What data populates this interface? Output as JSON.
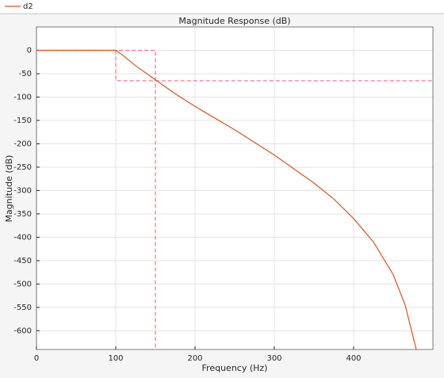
{
  "chart_data": {
    "type": "line",
    "title": "Magnitude Response (dB)",
    "x_label": "Frequency (Hz)",
    "y_label": "Magnitude (dB)",
    "x": [
      0,
      100,
      110,
      125,
      150,
      175,
      200,
      250,
      300,
      350,
      375,
      400,
      425,
      450,
      465,
      479
    ],
    "series": [
      {
        "name": "d2",
        "color": "#d95319",
        "values": [
          0,
          0,
          -12,
          -33,
          -63,
          -93,
          -120,
          -170,
          -224,
          -284,
          -318,
          -360,
          -410,
          -480,
          -545,
          -640
        ]
      }
    ],
    "mask": {
      "color": "#ff6f8a",
      "x": [
        0,
        150,
        150,
        null,
        100,
        100,
        500
      ],
      "values": [
        0,
        0,
        -640,
        null,
        0,
        -65,
        -65
      ]
    },
    "xlim": [
      0,
      500
    ],
    "ylim": [
      -640,
      50
    ],
    "xticks": [
      0,
      100,
      200,
      300,
      400
    ],
    "yticks": [
      0,
      -50,
      -100,
      -150,
      -200,
      -250,
      -300,
      -350,
      -400,
      -450,
      -500,
      -550,
      -600
    ],
    "grid": true
  }
}
